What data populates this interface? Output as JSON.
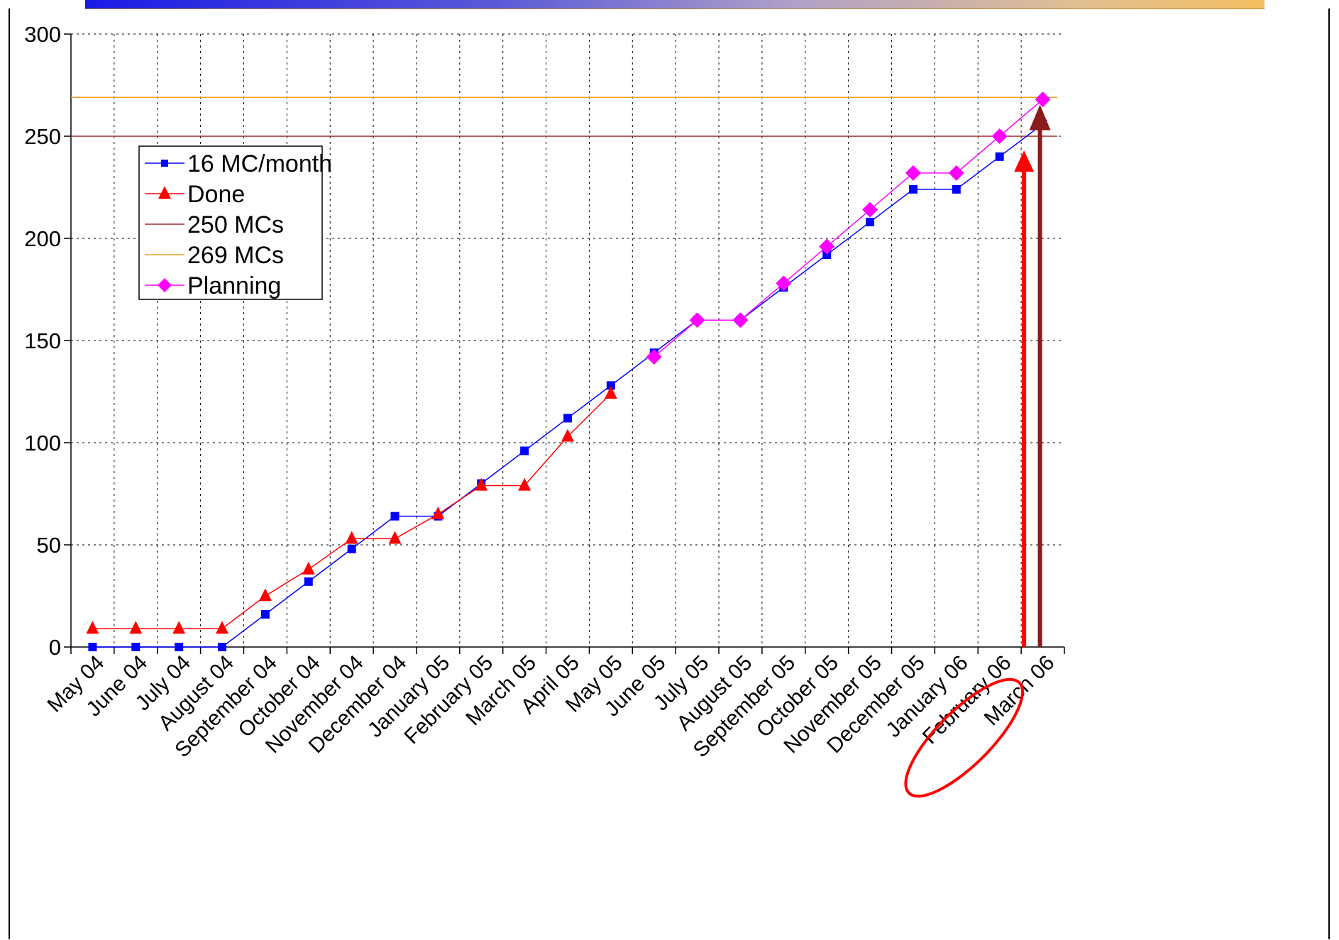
{
  "chart_data": {
    "type": "line",
    "categories": [
      "May 04",
      "June 04",
      "July 04",
      "August 04",
      "September 04",
      "October 04",
      "November 04",
      "December 04",
      "January 05",
      "February 05",
      "March 05",
      "April 05",
      "May 05",
      "June 05",
      "July 05",
      "August 05",
      "September 05",
      "October 05",
      "November 05",
      "December 05",
      "January 06",
      "February 06",
      "March 06"
    ],
    "ylim": [
      0,
      300
    ],
    "yticks": [
      0,
      50,
      100,
      150,
      200,
      250,
      300
    ],
    "grid": true,
    "legend_position": "top-left",
    "series": [
      {
        "name": "16 MC/month",
        "color": "#0000ff",
        "marker": "square",
        "values": [
          0,
          0,
          0,
          0,
          16,
          32,
          48,
          64,
          64,
          80,
          96,
          112,
          128,
          144,
          160,
          160,
          176,
          192,
          208,
          224,
          224,
          240,
          256
        ]
      },
      {
        "name": "Done",
        "color": "#ff0000",
        "marker": "triangle",
        "values": [
          9,
          9,
          9,
          9,
          25,
          38,
          53,
          53,
          65,
          79,
          79,
          103,
          124,
          null,
          null,
          null,
          null,
          null,
          null,
          null,
          null,
          null,
          null
        ]
      },
      {
        "name": "250 MCs",
        "color": "#a0282a",
        "marker": "none",
        "constant": 250
      },
      {
        "name": "269 MCs",
        "color": "#f0a020",
        "marker": "none",
        "constant": 269
      },
      {
        "name": "Planning",
        "color": "#ff00ff",
        "marker": "diamond",
        "values": [
          null,
          null,
          null,
          null,
          null,
          null,
          null,
          null,
          null,
          null,
          null,
          null,
          null,
          142,
          160,
          160,
          178,
          196,
          214,
          232,
          232,
          250,
          268
        ]
      }
    ],
    "annotations": {
      "arrow_red": {
        "category": "February 06",
        "value": 243,
        "color": "#ff0000"
      },
      "arrow_darkred": {
        "category": "March 06",
        "value": 262,
        "color": "#8b1a1a"
      },
      "highlight_ellipse": {
        "category": "February 06",
        "color": "#ff0000"
      }
    }
  }
}
